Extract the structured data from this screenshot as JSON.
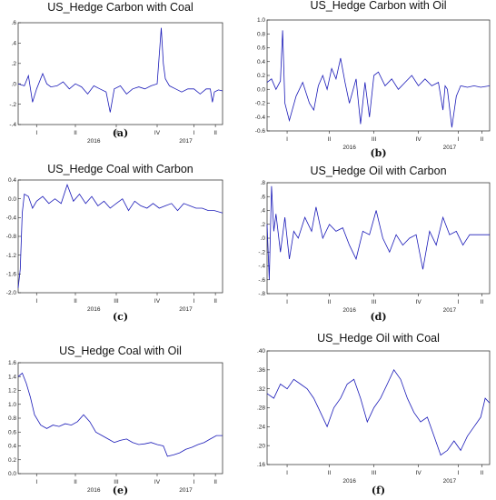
{
  "chart_data": [
    {
      "type": "line",
      "title": "US_Hedge Carbon with Coal",
      "caption": "(a)",
      "ylim": [
        -0.4,
        0.6
      ],
      "yticks": [
        ".6",
        ".4",
        ".2",
        ".0",
        "-.2",
        "-.4"
      ],
      "ytick_values": [
        0.6,
        0.4,
        0.2,
        0.0,
        -0.2,
        -0.4
      ],
      "quarter_labels": [
        "I",
        "II",
        "III",
        "IV",
        "I",
        "II"
      ],
      "year_labels": [
        "2016",
        "2017"
      ],
      "x": [
        0,
        3,
        5,
        7,
        9,
        12,
        14,
        16,
        19,
        22,
        25,
        28,
        31,
        34,
        37,
        40,
        43,
        45,
        47,
        50,
        53,
        56,
        59,
        62,
        65,
        68,
        70,
        71,
        72,
        74,
        77,
        80,
        83,
        86,
        89,
        92,
        94,
        95,
        96,
        98,
        100
      ],
      "values": [
        0.0,
        -0.02,
        0.08,
        -0.18,
        -0.05,
        0.1,
        0.0,
        -0.03,
        -0.02,
        0.02,
        -0.05,
        0.0,
        -0.03,
        -0.1,
        -0.02,
        -0.05,
        -0.08,
        -0.28,
        -0.05,
        -0.02,
        -0.1,
        -0.05,
        -0.03,
        -0.05,
        -0.02,
        0.0,
        0.55,
        0.2,
        0.05,
        -0.02,
        -0.05,
        -0.08,
        -0.05,
        -0.05,
        -0.1,
        -0.05,
        -0.05,
        -0.18,
        -0.08,
        -0.06,
        -0.07
      ]
    },
    {
      "type": "line",
      "title": "US_Hedge Carbon with Oil",
      "caption": "(b)",
      "ylim": [
        -0.6,
        1.0
      ],
      "yticks": [
        "1.0",
        "0.8",
        "0.6",
        "0.4",
        "0.2",
        "0.0",
        "-0.2",
        "-0.4",
        "-0.6"
      ],
      "ytick_values": [
        1.0,
        0.8,
        0.6,
        0.4,
        0.2,
        0.0,
        -0.2,
        -0.4,
        -0.6
      ],
      "quarter_labels": [
        "I",
        "II",
        "III",
        "IV",
        "I",
        "II"
      ],
      "year_labels": [
        "2016",
        "2017"
      ],
      "x": [
        0,
        2,
        4,
        6,
        7,
        8,
        10,
        13,
        16,
        19,
        21,
        23,
        25,
        27,
        29,
        31,
        33,
        35,
        37,
        40,
        42,
        44,
        46,
        48,
        50,
        53,
        56,
        59,
        62,
        65,
        68,
        71,
        74,
        77,
        79,
        80,
        81,
        83,
        85,
        87,
        90,
        93,
        96,
        100
      ],
      "values": [
        0.1,
        0.15,
        0.0,
        0.12,
        0.85,
        -0.2,
        -0.45,
        -0.1,
        0.1,
        -0.2,
        -0.3,
        0.05,
        0.2,
        0.0,
        0.3,
        0.15,
        0.45,
        0.1,
        -0.2,
        0.15,
        -0.5,
        0.1,
        -0.4,
        0.2,
        0.25,
        0.05,
        0.15,
        0.0,
        0.1,
        0.2,
        0.05,
        0.15,
        0.05,
        0.1,
        -0.3,
        0.05,
        0.0,
        -0.55,
        -0.1,
        0.05,
        0.03,
        0.05,
        0.03,
        0.05
      ]
    },
    {
      "type": "line",
      "title": "US_Hedge Coal with Carbon",
      "caption": "(c)",
      "ylim": [
        -2.0,
        0.4
      ],
      "yticks": [
        "0.4",
        "0.0",
        "-0.4",
        "-0.8",
        "-1.2",
        "-1.6",
        "-2.0"
      ],
      "ytick_values": [
        0.4,
        0.0,
        -0.4,
        -0.8,
        -1.2,
        -1.6,
        -2.0
      ],
      "quarter_labels": [
        "I",
        "II",
        "III",
        "IV",
        "I",
        "II"
      ],
      "year_labels": [
        "2016",
        "2017"
      ],
      "x": [
        0,
        1,
        2,
        3,
        5,
        7,
        9,
        12,
        15,
        18,
        21,
        24,
        27,
        30,
        33,
        36,
        39,
        42,
        45,
        48,
        51,
        54,
        57,
        60,
        63,
        66,
        69,
        72,
        75,
        78,
        81,
        84,
        87,
        90,
        93,
        96,
        100
      ],
      "values": [
        -1.9,
        -1.5,
        -0.3,
        0.1,
        0.05,
        -0.2,
        -0.05,
        0.05,
        -0.1,
        0.0,
        -0.1,
        0.3,
        -0.05,
        0.1,
        -0.1,
        0.05,
        -0.15,
        -0.05,
        -0.2,
        -0.1,
        0.0,
        -0.25,
        -0.05,
        -0.15,
        -0.2,
        -0.1,
        -0.2,
        -0.15,
        -0.1,
        -0.25,
        -0.1,
        -0.15,
        -0.2,
        -0.2,
        -0.25,
        -0.25,
        -0.3
      ]
    },
    {
      "type": "line",
      "title": "US_Hedge Oil with Carbon",
      "caption": "(d)",
      "ylim": [
        -0.8,
        0.8
      ],
      "yticks": [
        ".8",
        ".6",
        ".4",
        ".2",
        ".0",
        "-.2",
        "-.4",
        "-.6",
        "-.8"
      ],
      "ytick_values": [
        0.8,
        0.6,
        0.4,
        0.2,
        0.0,
        -0.2,
        -0.4,
        -0.6,
        -0.8
      ],
      "quarter_labels": [
        "I",
        "II",
        "III",
        "IV",
        "I",
        "II"
      ],
      "year_labels": [
        "2016",
        "2017"
      ],
      "x": [
        0,
        1,
        2,
        3,
        4,
        6,
        8,
        10,
        12,
        14,
        17,
        20,
        22,
        25,
        28,
        31,
        34,
        37,
        40,
        43,
        46,
        49,
        52,
        55,
        58,
        61,
        64,
        67,
        70,
        73,
        76,
        79,
        82,
        85,
        88,
        91,
        94,
        97,
        100
      ],
      "values": [
        0.2,
        -0.6,
        0.75,
        0.1,
        0.35,
        -0.2,
        0.3,
        -0.3,
        0.1,
        0.0,
        0.3,
        0.1,
        0.45,
        0.0,
        0.2,
        0.1,
        0.15,
        -0.1,
        -0.3,
        0.1,
        0.05,
        0.4,
        0.0,
        -0.2,
        0.05,
        -0.1,
        0.0,
        0.05,
        -0.45,
        0.1,
        -0.1,
        0.3,
        0.05,
        0.1,
        -0.1,
        0.05,
        0.05,
        0.05,
        0.05
      ]
    },
    {
      "type": "line",
      "title": "US_Hedge Coal with Oil",
      "caption": "(e)",
      "ylim": [
        0.0,
        1.6
      ],
      "yticks": [
        "1.6",
        "1.4",
        "1.2",
        "1.0",
        "0.8",
        "0.6",
        "0.4",
        "0.2",
        "0.0"
      ],
      "ytick_values": [
        1.6,
        1.4,
        1.2,
        1.0,
        0.8,
        0.6,
        0.4,
        0.2,
        0.0
      ],
      "quarter_labels": [
        "I",
        "II",
        "III",
        "IV",
        "I",
        "II"
      ],
      "year_labels": [
        "2016",
        "2017"
      ],
      "x": [
        0,
        2,
        4,
        6,
        8,
        11,
        14,
        17,
        20,
        23,
        26,
        29,
        32,
        35,
        38,
        41,
        44,
        47,
        50,
        53,
        56,
        59,
        62,
        65,
        68,
        71,
        73,
        76,
        79,
        82,
        85,
        88,
        91,
        94,
        97,
        100
      ],
      "values": [
        1.4,
        1.45,
        1.3,
        1.1,
        0.85,
        0.7,
        0.65,
        0.7,
        0.68,
        0.72,
        0.7,
        0.75,
        0.85,
        0.75,
        0.6,
        0.55,
        0.5,
        0.45,
        0.48,
        0.5,
        0.45,
        0.42,
        0.43,
        0.45,
        0.42,
        0.4,
        0.25,
        0.27,
        0.3,
        0.35,
        0.38,
        0.42,
        0.45,
        0.5,
        0.55,
        0.55
      ]
    },
    {
      "type": "line",
      "title": "US_Hedge Oil with Coal",
      "caption": "(f)",
      "ylim": [
        0.16,
        0.4
      ],
      "yticks": [
        ".40",
        ".36",
        ".32",
        ".28",
        ".24",
        ".20",
        ".16"
      ],
      "ytick_values": [
        0.4,
        0.36,
        0.32,
        0.28,
        0.24,
        0.2,
        0.16
      ],
      "quarter_labels": [
        "I",
        "II",
        "III",
        "IV",
        "I",
        "II"
      ],
      "year_labels": [
        "2016",
        "2017"
      ],
      "x": [
        0,
        3,
        6,
        9,
        12,
        15,
        18,
        21,
        24,
        27,
        30,
        33,
        36,
        39,
        42,
        45,
        48,
        51,
        54,
        57,
        60,
        63,
        66,
        69,
        72,
        75,
        78,
        81,
        84,
        87,
        90,
        93,
        96,
        98,
        100
      ],
      "values": [
        0.31,
        0.3,
        0.33,
        0.32,
        0.34,
        0.33,
        0.32,
        0.3,
        0.27,
        0.24,
        0.28,
        0.3,
        0.33,
        0.34,
        0.3,
        0.25,
        0.28,
        0.3,
        0.33,
        0.36,
        0.34,
        0.3,
        0.27,
        0.25,
        0.26,
        0.22,
        0.18,
        0.19,
        0.21,
        0.19,
        0.22,
        0.24,
        0.26,
        0.3,
        0.29
      ]
    }
  ]
}
